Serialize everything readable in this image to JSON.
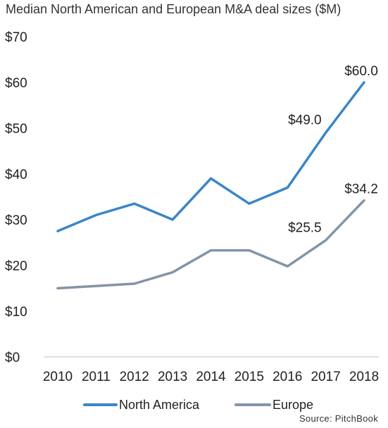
{
  "chart_data": {
    "type": "line",
    "title": "Median North American and European M&A deal sizes ($M)",
    "source": "Source: PitchBook",
    "x": [
      "2010",
      "2011",
      "2012",
      "2013",
      "2014",
      "2015",
      "2016",
      "2017",
      "2018"
    ],
    "y_ticks": [
      "$0",
      "$10",
      "$20",
      "$30",
      "$40",
      "$50",
      "$60",
      "$70"
    ],
    "ylim": [
      0,
      70
    ],
    "grid": false,
    "legend_position": "bottom",
    "series": [
      {
        "name": "North America",
        "color": "#3a86c8",
        "values": [
          27.5,
          31.0,
          33.5,
          30.0,
          39.0,
          33.5,
          37.0,
          49.0,
          60.0
        ]
      },
      {
        "name": "Europe",
        "color": "#8494a7",
        "values": [
          15.0,
          15.5,
          16.0,
          18.5,
          23.3,
          23.3,
          19.8,
          25.5,
          34.2
        ]
      }
    ],
    "annotations": [
      {
        "series": 0,
        "index": 7,
        "text": "$49.0"
      },
      {
        "series": 0,
        "index": 8,
        "text": "$60.0"
      },
      {
        "series": 1,
        "index": 7,
        "text": "$25.5"
      },
      {
        "series": 1,
        "index": 8,
        "text": "$34.2"
      }
    ]
  }
}
